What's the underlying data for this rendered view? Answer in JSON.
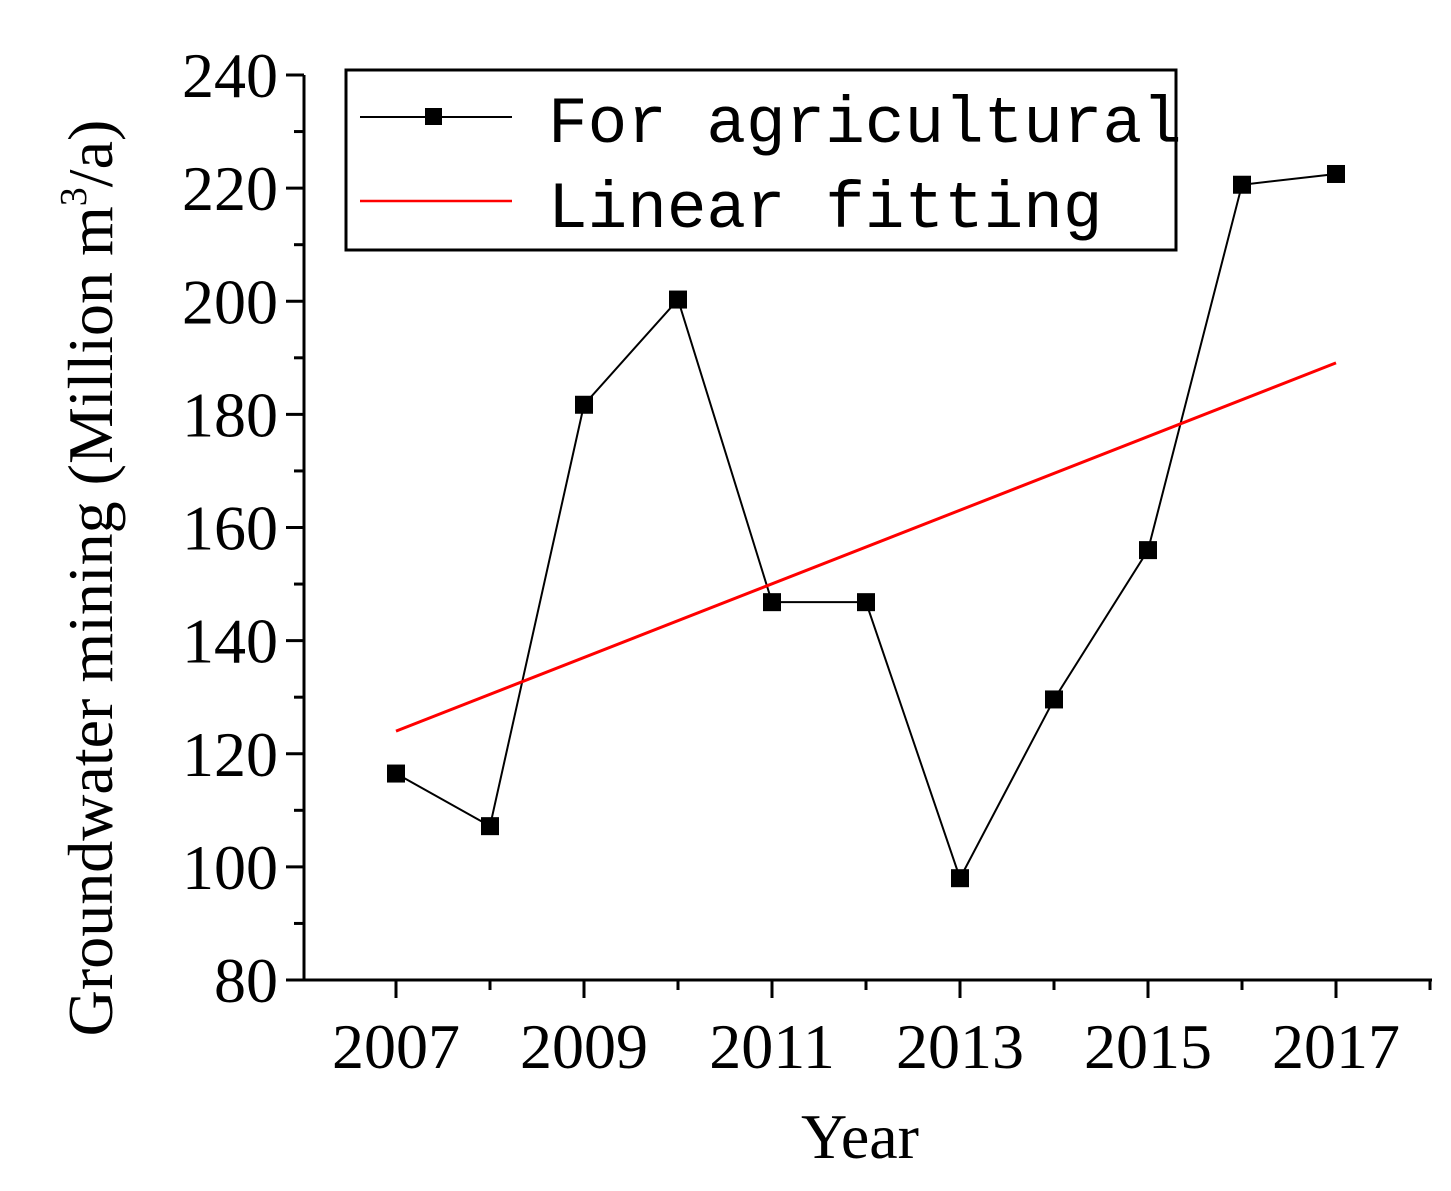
{
  "chart_data": {
    "type": "line",
    "title": "",
    "xlabel": "Year",
    "ylabel": {
      "prefix": "Groundwater mining (Million m",
      "superscript": "3",
      "suffix": "/a)"
    },
    "xlim": [
      2006,
      2018
    ],
    "ylim": [
      80,
      240
    ],
    "x_ticks": [
      2007,
      2009,
      2011,
      2013,
      2015,
      2017
    ],
    "y_ticks": [
      80,
      100,
      120,
      140,
      160,
      180,
      200,
      220,
      240
    ],
    "series": [
      {
        "name": "For agricultural",
        "color": "#000000",
        "marker": "square",
        "x": [
          2007,
          2008,
          2009,
          2010,
          2011,
          2012,
          2013,
          2014,
          2015,
          2016,
          2017
        ],
        "y": [
          116.5,
          107.2,
          181.7,
          200.3,
          146.8,
          146.8,
          98.0,
          129.6,
          156.0,
          220.6,
          222.5
        ]
      },
      {
        "name": "Linear fitting",
        "color": "#ff0000",
        "marker": "none",
        "x": [
          2007,
          2017
        ],
        "y": [
          124.0,
          189.1
        ]
      }
    ],
    "legend": {
      "position": "top-right",
      "entries": [
        "For agricultural",
        "Linear fitting"
      ]
    },
    "grid": false
  }
}
